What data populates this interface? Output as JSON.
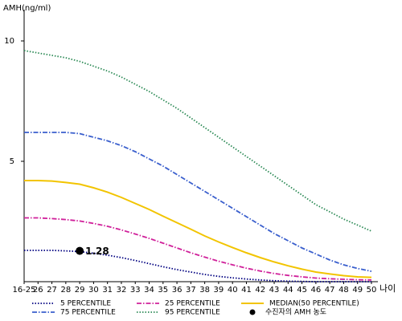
{
  "chart_data": {
    "type": "line",
    "y_label": "AMH(ng/ml)",
    "x_label": "나이",
    "categories": [
      "16-25",
      "26",
      "27",
      "28",
      "29",
      "30",
      "31",
      "32",
      "33",
      "34",
      "35",
      "36",
      "37",
      "38",
      "39",
      "40",
      "41",
      "42",
      "43",
      "44",
      "45",
      "46",
      "47",
      "48",
      "49",
      "50"
    ],
    "ylim": [
      0,
      11.3
    ],
    "yticks": [
      5,
      10
    ],
    "series": [
      {
        "name": "5 PERCENTILE",
        "color": "#000080",
        "line_style": "dotted",
        "values": [
          1.3,
          1.3,
          1.3,
          1.28,
          1.25,
          1.18,
          1.1,
          1.0,
          0.88,
          0.75,
          0.62,
          0.5,
          0.4,
          0.3,
          0.22,
          0.16,
          0.11,
          0.07,
          0.04,
          0.02,
          0.01,
          0,
          0,
          0,
          0,
          0
        ]
      },
      {
        "name": "25 PERCENTILE",
        "color": "#d0209a",
        "line_style": "dashdot",
        "values": [
          2.65,
          2.65,
          2.62,
          2.58,
          2.52,
          2.42,
          2.3,
          2.15,
          1.98,
          1.8,
          1.6,
          1.4,
          1.2,
          1.02,
          0.85,
          0.7,
          0.56,
          0.44,
          0.34,
          0.26,
          0.2,
          0.15,
          0.12,
          0.1,
          0.08,
          0.07
        ]
      },
      {
        "name": "MEDIAN(50 PERCENTILE)",
        "color": "#f2c400",
        "line_style": "solid",
        "values": [
          4.2,
          4.2,
          4.18,
          4.12,
          4.05,
          3.9,
          3.72,
          3.5,
          3.25,
          3.0,
          2.72,
          2.45,
          2.18,
          1.9,
          1.65,
          1.42,
          1.2,
          1.0,
          0.82,
          0.66,
          0.52,
          0.4,
          0.32,
          0.25,
          0.2,
          0.18
        ]
      },
      {
        "name": "75 PERCENTILE",
        "color": "#3a5fcd",
        "line_style": "dashdot",
        "values": [
          6.2,
          6.2,
          6.2,
          6.2,
          6.15,
          6.0,
          5.85,
          5.65,
          5.4,
          5.1,
          4.8,
          4.45,
          4.1,
          3.75,
          3.4,
          3.05,
          2.7,
          2.35,
          2.0,
          1.7,
          1.4,
          1.15,
          0.9,
          0.7,
          0.55,
          0.43
        ]
      },
      {
        "name": "95 PERCENTILE",
        "color": "#2e8b57",
        "line_style": "dotted",
        "values": [
          9.6,
          9.5,
          9.4,
          9.3,
          9.15,
          8.95,
          8.75,
          8.5,
          8.2,
          7.9,
          7.55,
          7.2,
          6.8,
          6.4,
          6.0,
          5.6,
          5.2,
          4.8,
          4.4,
          4.0,
          3.6,
          3.2,
          2.9,
          2.6,
          2.35,
          2.1
        ]
      }
    ],
    "marker": {
      "name": "수진자의 AMH 농도",
      "category": "29",
      "value": 1.28,
      "color": "#000000"
    }
  }
}
